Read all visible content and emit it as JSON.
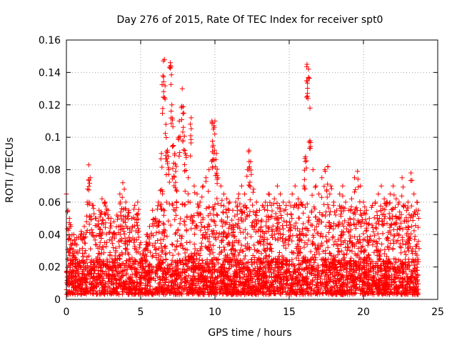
{
  "chart_data": {
    "type": "scatter",
    "title": "Day 276 of 2015, Rate Of TEC Index for receiver spt0",
    "xlabel": "GPS time / hours",
    "ylabel": "ROTI / TECUs",
    "xlim": [
      0,
      25
    ],
    "ylim": [
      0,
      0.16
    ],
    "xticks": [
      0,
      5,
      10,
      15,
      20,
      25
    ],
    "yticks": [
      0,
      0.02,
      0.04,
      0.06,
      0.08,
      0.1,
      0.12,
      0.14,
      0.16
    ],
    "xtick_labels": [
      "0",
      "5",
      "10",
      "15",
      "20",
      "25"
    ],
    "ytick_labels": [
      "0",
      "0.02",
      "0.04",
      "0.06",
      "0.08",
      "0.1",
      "0.12",
      "0.14",
      "0.16"
    ],
    "grid": true,
    "marker": "+",
    "color": "#ff0000",
    "series": [
      {
        "name": "ROTI",
        "x": [
          0.0,
          0.1,
          0.2,
          0.3,
          0.5,
          0.8,
          1.0,
          1.2,
          1.4,
          1.5,
          1.6,
          1.8,
          2.0,
          2.2,
          2.4,
          2.6,
          2.8,
          3.0,
          3.2,
          3.4,
          3.6,
          3.8,
          3.9,
          4.0,
          4.2,
          4.4,
          4.6,
          4.8,
          5.0,
          5.2,
          5.4,
          5.6,
          5.8,
          6.0,
          6.2,
          6.4,
          6.5,
          6.6,
          6.7,
          6.8,
          6.9,
          7.0,
          7.1,
          7.2,
          7.3,
          7.4,
          7.6,
          7.8,
          7.9,
          8.0,
          8.2,
          8.4,
          8.6,
          8.8,
          9.0,
          9.2,
          9.4,
          9.6,
          9.8,
          9.9,
          10.0,
          10.1,
          10.2,
          10.4,
          10.6,
          10.8,
          11.0,
          11.2,
          11.4,
          11.6,
          11.8,
          12.0,
          12.2,
          12.3,
          12.4,
          12.6,
          12.8,
          13.0,
          13.2,
          13.4,
          13.6,
          13.8,
          14.0,
          14.2,
          14.4,
          14.6,
          14.8,
          15.0,
          15.2,
          15.4,
          15.6,
          15.8,
          16.0,
          16.1,
          16.2,
          16.3,
          16.4,
          16.6,
          16.8,
          17.0,
          17.2,
          17.4,
          17.6,
          17.8,
          18.0,
          18.2,
          18.4,
          18.6,
          18.8,
          19.0,
          19.2,
          19.4,
          19.6,
          19.8,
          20.0,
          20.2,
          20.4,
          20.6,
          20.8,
          21.0,
          21.2,
          21.4,
          21.6,
          21.8,
          22.0,
          22.2,
          22.4,
          22.6,
          22.8,
          23.0,
          23.2,
          23.4,
          23.6,
          23.7
        ],
        "y": [
          0.065,
          0.055,
          0.05,
          0.045,
          0.04,
          0.038,
          0.042,
          0.045,
          0.06,
          0.083,
          0.075,
          0.058,
          0.05,
          0.055,
          0.062,
          0.06,
          0.055,
          0.05,
          0.048,
          0.052,
          0.065,
          0.072,
          0.068,
          0.06,
          0.055,
          0.05,
          0.058,
          0.06,
          0.035,
          0.03,
          0.04,
          0.045,
          0.055,
          0.05,
          0.06,
          0.09,
          0.138,
          0.148,
          0.108,
          0.092,
          0.08,
          0.146,
          0.12,
          0.095,
          0.09,
          0.082,
          0.11,
          0.13,
          0.115,
          0.09,
          0.075,
          0.112,
          0.07,
          0.065,
          0.06,
          0.07,
          0.075,
          0.08,
          0.11,
          0.105,
          0.11,
          0.09,
          0.075,
          0.07,
          0.065,
          0.062,
          0.06,
          0.055,
          0.06,
          0.065,
          0.07,
          0.065,
          0.08,
          0.092,
          0.085,
          0.068,
          0.06,
          0.055,
          0.058,
          0.06,
          0.065,
          0.058,
          0.062,
          0.07,
          0.065,
          0.06,
          0.058,
          0.06,
          0.065,
          0.07,
          0.062,
          0.06,
          0.07,
          0.088,
          0.145,
          0.142,
          0.118,
          0.08,
          0.07,
          0.065,
          0.075,
          0.08,
          0.082,
          0.07,
          0.06,
          0.055,
          0.065,
          0.07,
          0.06,
          0.055,
          0.062,
          0.075,
          0.079,
          0.07,
          0.06,
          0.055,
          0.05,
          0.058,
          0.06,
          0.065,
          0.07,
          0.062,
          0.06,
          0.065,
          0.07,
          0.062,
          0.06,
          0.075,
          0.058,
          0.06,
          0.078,
          0.065,
          0.06,
          0.055
        ],
        "baseline_min": 0.003,
        "baseline_max": 0.025
      }
    ]
  }
}
